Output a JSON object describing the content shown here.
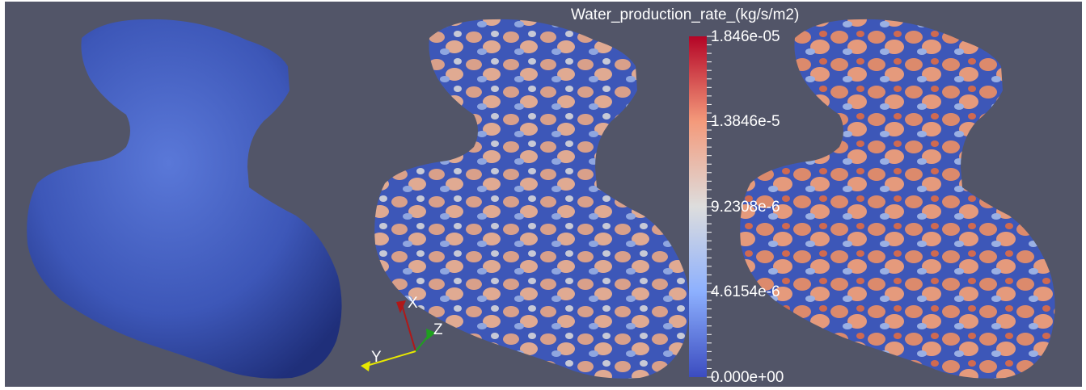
{
  "legend": {
    "title": "Water_production_rate_(kg/s/m2)",
    "ticks": [
      {
        "label": "1.846e-05",
        "fraction": 1.0
      },
      {
        "label": "1.3846e-5",
        "fraction": 0.75
      },
      {
        "label": "9.2308e-6",
        "fraction": 0.5
      },
      {
        "label": "4.6154e-6",
        "fraction": 0.25
      },
      {
        "label": "0.000e+00",
        "fraction": 0.0
      }
    ],
    "colors": [
      "#3b4cc0",
      "#8db0fe",
      "#dddddd",
      "#f49a7b",
      "#b40426"
    ]
  },
  "axes": {
    "x": "X",
    "y": "Y",
    "z": "Z"
  },
  "colors": {
    "background": "#525568",
    "low": "#3b4cc0",
    "mid": "#dddddd",
    "high": "#b40426",
    "x_axis": "#b01818",
    "y_axis": "#e8e800",
    "z_axis": "#1fa01f"
  }
}
